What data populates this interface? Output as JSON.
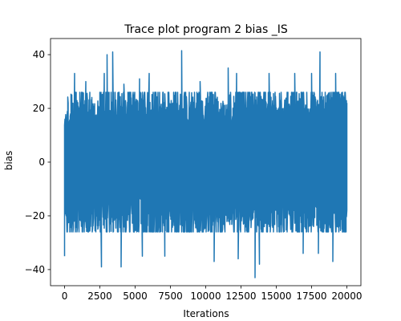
{
  "chart_data": {
    "type": "line",
    "title": "Trace plot program 2 bias _IS",
    "xlabel": "Iterations",
    "ylabel": "bias",
    "xlim": [
      -1000,
      21000
    ],
    "ylim": [
      -46,
      46
    ],
    "xticks": [
      0,
      2500,
      5000,
      7500,
      10000,
      12500,
      15000,
      17500,
      20000
    ],
    "yticks": [
      -40,
      -20,
      0,
      20,
      40
    ],
    "grid": false,
    "legend": "none",
    "color": "#1f77b4",
    "series": [
      {
        "n_points": 20000,
        "x_range": [
          0,
          20000
        ],
        "center": 0,
        "typical_envelope": [
          -22,
          22
        ],
        "max": 41.5,
        "min": -43,
        "peaks": [
          {
            "x": 250,
            "y": 22
          },
          {
            "x": 700,
            "y": 33
          },
          {
            "x": 1500,
            "y": 30
          },
          {
            "x": 2800,
            "y": 33
          },
          {
            "x": 3000,
            "y": 40
          },
          {
            "x": 3400,
            "y": 41
          },
          {
            "x": 4200,
            "y": 29
          },
          {
            "x": 5300,
            "y": 31
          },
          {
            "x": 6000,
            "y": 33
          },
          {
            "x": 7100,
            "y": 30
          },
          {
            "x": 8300,
            "y": 41.5
          },
          {
            "x": 9600,
            "y": 30
          },
          {
            "x": 11600,
            "y": 35
          },
          {
            "x": 12200,
            "y": 33
          },
          {
            "x": 14500,
            "y": 33
          },
          {
            "x": 16300,
            "y": 33
          },
          {
            "x": 17500,
            "y": 33
          },
          {
            "x": 18100,
            "y": 41
          },
          {
            "x": 19200,
            "y": 33
          },
          {
            "x": 20000,
            "y": 22
          }
        ],
        "troughs": [
          {
            "x": 0,
            "y": -35
          },
          {
            "x": 2600,
            "y": -39
          },
          {
            "x": 4000,
            "y": -39
          },
          {
            "x": 5500,
            "y": -35
          },
          {
            "x": 7100,
            "y": -35
          },
          {
            "x": 10600,
            "y": -37
          },
          {
            "x": 12300,
            "y": -36
          },
          {
            "x": 13500,
            "y": -43
          },
          {
            "x": 13800,
            "y": -38
          },
          {
            "x": 16900,
            "y": -34
          },
          {
            "x": 18000,
            "y": -34
          },
          {
            "x": 19000,
            "y": -37
          }
        ]
      }
    ]
  }
}
